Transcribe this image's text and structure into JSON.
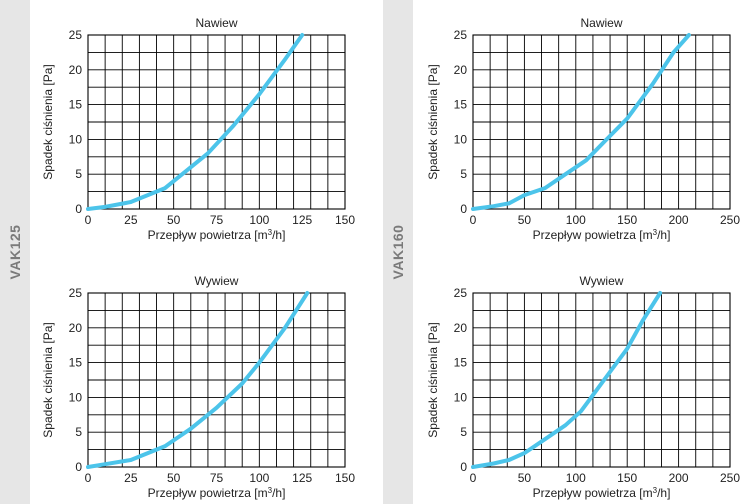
{
  "groups": [
    {
      "label": "VAK125"
    },
    {
      "label": "VAK160"
    }
  ],
  "colors": {
    "curve": "#4cc4ea",
    "grid": "#000000",
    "band": "#e6e6e6",
    "band_text": "#7a7a7a"
  },
  "chart_data": [
    {
      "type": "line",
      "title": "Nawiew",
      "xlabel": "Przepływ powietrza [m3/h]",
      "ylabel": "Spadek ciśnienia [Pa]",
      "xlim": [
        0,
        150
      ],
      "ylim": [
        0,
        25
      ],
      "xticks": [
        0,
        25,
        50,
        75,
        100,
        125,
        150
      ],
      "yticks": [
        0,
        5,
        10,
        15,
        20,
        25
      ],
      "grid": true,
      "series": [
        {
          "x": [
            0,
            10,
            25,
            45,
            55,
            70,
            85,
            100,
            115,
            125
          ],
          "y": [
            0,
            0.3,
            1,
            3,
            5,
            8,
            12,
            16.5,
            21.5,
            25
          ]
        }
      ]
    },
    {
      "type": "line",
      "title": "Nawiew",
      "xlabel": "Przepływ powietrza [m3/h]",
      "ylabel": "Spadek ciśnienia [Pa]",
      "xlim": [
        0,
        250
      ],
      "ylim": [
        0,
        25
      ],
      "xticks": [
        0,
        50,
        100,
        150,
        200,
        250
      ],
      "yticks": [
        0,
        5,
        10,
        15,
        20,
        25
      ],
      "grid": true,
      "series": [
        {
          "x": [
            0,
            20,
            35,
            50,
            70,
            90,
            110,
            130,
            150,
            175,
            195,
            210
          ],
          "y": [
            0,
            0.4,
            0.8,
            2,
            3,
            5,
            7,
            10,
            13,
            18,
            22.5,
            25
          ]
        }
      ]
    },
    {
      "type": "line",
      "title": "Wywiew",
      "xlabel": "Przepływ powietrza [m3/h]",
      "ylabel": "Spadek ciśnienia [Pa]",
      "xlim": [
        0,
        150
      ],
      "ylim": [
        0,
        25
      ],
      "xticks": [
        0,
        25,
        50,
        75,
        100,
        125,
        150
      ],
      "yticks": [
        0,
        5,
        10,
        15,
        20,
        25
      ],
      "grid": true,
      "series": [
        {
          "x": [
            0,
            10,
            25,
            45,
            60,
            75,
            90,
            100,
            115,
            128
          ],
          "y": [
            0,
            0.4,
            1,
            3,
            5.5,
            8.5,
            12,
            15,
            20,
            25
          ]
        }
      ]
    },
    {
      "type": "line",
      "title": "Wywiew",
      "xlabel": "Przepływ powietrza [m3/h]",
      "ylabel": "Spadek ciśnienia [Pa]",
      "xlim": [
        0,
        250
      ],
      "ylim": [
        0,
        25
      ],
      "xticks": [
        0,
        50,
        100,
        150,
        200,
        250
      ],
      "yticks": [
        0,
        5,
        10,
        15,
        20,
        25
      ],
      "grid": true,
      "series": [
        {
          "x": [
            0,
            20,
            35,
            50,
            70,
            90,
            105,
            115,
            130,
            150,
            165,
            182
          ],
          "y": [
            0,
            0.5,
            1,
            2,
            4,
            6,
            8,
            10,
            13,
            17,
            21,
            25
          ]
        }
      ]
    }
  ]
}
